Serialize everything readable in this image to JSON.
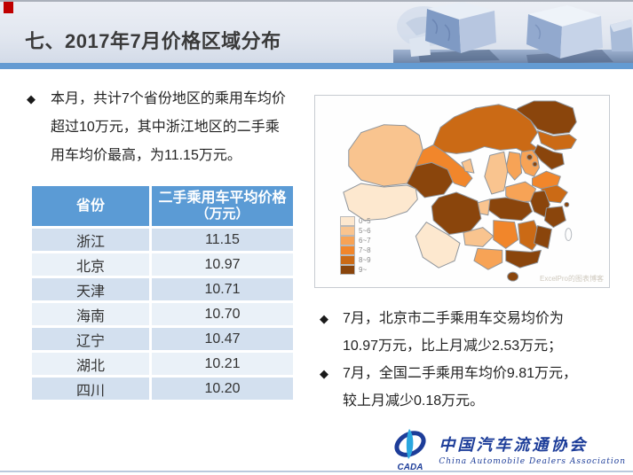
{
  "header": {
    "title": "七、2017年7月价格区域分布"
  },
  "left_panel": {
    "bullet_marker": "◆",
    "summary_lines": [
      "本月，共计7个省份地区的乘用车均价",
      "超过10万元，其中浙江地区的二手乘",
      "用车均价最高，为11.15万元。"
    ]
  },
  "table": {
    "province_header": "省份",
    "price_header_line1": "二手乘用车平均价格",
    "price_header_line2": "（万元）",
    "rows": [
      {
        "province": "浙江",
        "price": "11.15"
      },
      {
        "province": "北京",
        "price": "10.97"
      },
      {
        "province": "天津",
        "price": "10.71"
      },
      {
        "province": "海南",
        "price": "10.70"
      },
      {
        "province": "辽宁",
        "price": "10.47"
      },
      {
        "province": "湖北",
        "price": "10.21"
      },
      {
        "province": "四川",
        "price": "10.20"
      }
    ]
  },
  "map": {
    "watermark": "ExcelPro的图表博客",
    "legend": [
      {
        "label": "0~5",
        "color": "#fde8cf"
      },
      {
        "label": "5~6",
        "color": "#f9c48f"
      },
      {
        "label": "6~7",
        "color": "#f7a356"
      },
      {
        "label": "7~8",
        "color": "#f1862b"
      },
      {
        "label": "8~9",
        "color": "#cb6a15"
      },
      {
        "label": "9~",
        "color": "#8a450c"
      }
    ],
    "no_data_color": "#fdfdfd",
    "provinces": [
      {
        "id": "xinjiang",
        "name": "新疆",
        "bucket": "5~6"
      },
      {
        "id": "xizang",
        "name": "西藏",
        "bucket": "0~5"
      },
      {
        "id": "qinghai",
        "name": "青海",
        "bucket": "9~"
      },
      {
        "id": "gansu",
        "name": "甘肃",
        "bucket": "7~8"
      },
      {
        "id": "ningxia",
        "name": "宁夏",
        "bucket": "5~6"
      },
      {
        "id": "neimenggu",
        "name": "内蒙古",
        "bucket": "8~9"
      },
      {
        "id": "heilongjiang",
        "name": "黑龙江",
        "bucket": "9~"
      },
      {
        "id": "jilin",
        "name": "吉林",
        "bucket": "8~9"
      },
      {
        "id": "liaoning",
        "name": "辽宁",
        "bucket": "9~"
      },
      {
        "id": "hebei",
        "name": "河北",
        "bucket": "6~7"
      },
      {
        "id": "beijing",
        "name": "北京",
        "bucket": "9~"
      },
      {
        "id": "tianjin",
        "name": "天津",
        "bucket": "9~"
      },
      {
        "id": "shanxi",
        "name": "山西",
        "bucket": "6~7"
      },
      {
        "id": "shandong",
        "name": "山东",
        "bucket": "7~8"
      },
      {
        "id": "shaanxi",
        "name": "陕西",
        "bucket": "5~6"
      },
      {
        "id": "henan",
        "name": "河南",
        "bucket": "6~7"
      },
      {
        "id": "jiangsu",
        "name": "江苏",
        "bucket": "8~9"
      },
      {
        "id": "shanghai",
        "name": "上海",
        "bucket": "9~"
      },
      {
        "id": "anhui",
        "name": "安徽",
        "bucket": "9~"
      },
      {
        "id": "hubei",
        "name": "湖北",
        "bucket": "9~"
      },
      {
        "id": "chongqing",
        "name": "重庆",
        "bucket": "5~6"
      },
      {
        "id": "sichuan",
        "name": "四川",
        "bucket": "9~"
      },
      {
        "id": "guizhou",
        "name": "贵州",
        "bucket": "5~6"
      },
      {
        "id": "yunnan",
        "name": "云南",
        "bucket": "0~5"
      },
      {
        "id": "hunan",
        "name": "湖南",
        "bucket": "7~8"
      },
      {
        "id": "jiangxi",
        "name": "江西",
        "bucket": "8~9"
      },
      {
        "id": "zhejiang",
        "name": "浙江",
        "bucket": "9~"
      },
      {
        "id": "fujian",
        "name": "福建",
        "bucket": "9~"
      },
      {
        "id": "guangdong",
        "name": "广东",
        "bucket": "9~"
      },
      {
        "id": "guangxi",
        "name": "广西",
        "bucket": "6~7"
      },
      {
        "id": "hainan",
        "name": "海南",
        "bucket": "9~"
      },
      {
        "id": "taiwan",
        "name": "台湾",
        "bucket": ""
      }
    ]
  },
  "right_bullets": [
    {
      "marker": "◆",
      "lines": [
        "7月，北京市二手乘用车交易均价为",
        "10.97万元，比上月减少2.53万元；"
      ]
    },
    {
      "marker": "◆",
      "lines": [
        "7月，全国二手乘用车均价9.81万元，",
        "较上月减少0.18万元。"
      ]
    }
  ],
  "footer": {
    "logo_acronym": "CADA",
    "org_cn": "中国汽车流通协会",
    "org_en": "China Automobile Dealers Association"
  },
  "chart_data": [
    {
      "type": "table",
      "title": "二手乘用车平均价格（万元）",
      "categories": [
        "浙江",
        "北京",
        "天津",
        "海南",
        "辽宁",
        "湖北",
        "四川"
      ],
      "values": [
        11.15,
        10.97,
        10.71,
        10.7,
        10.47,
        10.21,
        10.2
      ]
    },
    {
      "type": "heatmap",
      "subtype": "china_choropleth",
      "unit": "万元",
      "legend_position": "bottom-left",
      "legend_buckets": [
        "0~5",
        "5~6",
        "6~7",
        "7~8",
        "8~9",
        "9~"
      ],
      "regions": {
        "新疆": "5~6",
        "西藏": "0~5",
        "青海": "9~",
        "甘肃": "7~8",
        "宁夏": "5~6",
        "内蒙古": "8~9",
        "黑龙江": "9~",
        "吉林": "8~9",
        "辽宁": "9~",
        "河北": "6~7",
        "北京": "9~",
        "天津": "9~",
        "山西": "6~7",
        "山东": "7~8",
        "陕西": "5~6",
        "河南": "6~7",
        "江苏": "8~9",
        "上海": "9~",
        "安徽": "9~",
        "湖北": "9~",
        "重庆": "5~6",
        "四川": "9~",
        "贵州": "5~6",
        "云南": "0~5",
        "湖南": "7~8",
        "江西": "8~9",
        "浙江": "9~",
        "福建": "9~",
        "广东": "9~",
        "广西": "6~7",
        "海南": "9~"
      }
    }
  ]
}
